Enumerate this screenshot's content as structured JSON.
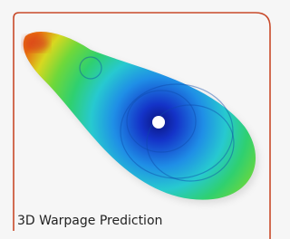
{
  "card": {
    "caption": "3D Warpage Prediction"
  }
}
